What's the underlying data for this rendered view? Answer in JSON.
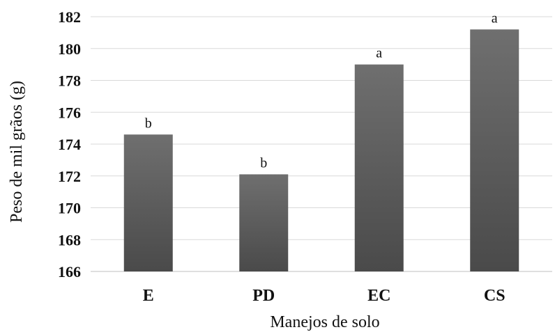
{
  "chart_data": {
    "type": "bar",
    "title": "",
    "xlabel": "Manejos de solo",
    "ylabel": "Peso de mil grãos (g)",
    "categories": [
      "E",
      "PD",
      "EC",
      "CS"
    ],
    "values": [
      174.6,
      172.1,
      179.0,
      181.2
    ],
    "bar_labels": [
      "b",
      "b",
      "a",
      "a"
    ],
    "ylim": [
      166,
      182
    ],
    "yticks": [
      166,
      168,
      170,
      172,
      174,
      176,
      178,
      180,
      182
    ],
    "grid": true,
    "legend": "none",
    "bar_color": "#555555"
  }
}
